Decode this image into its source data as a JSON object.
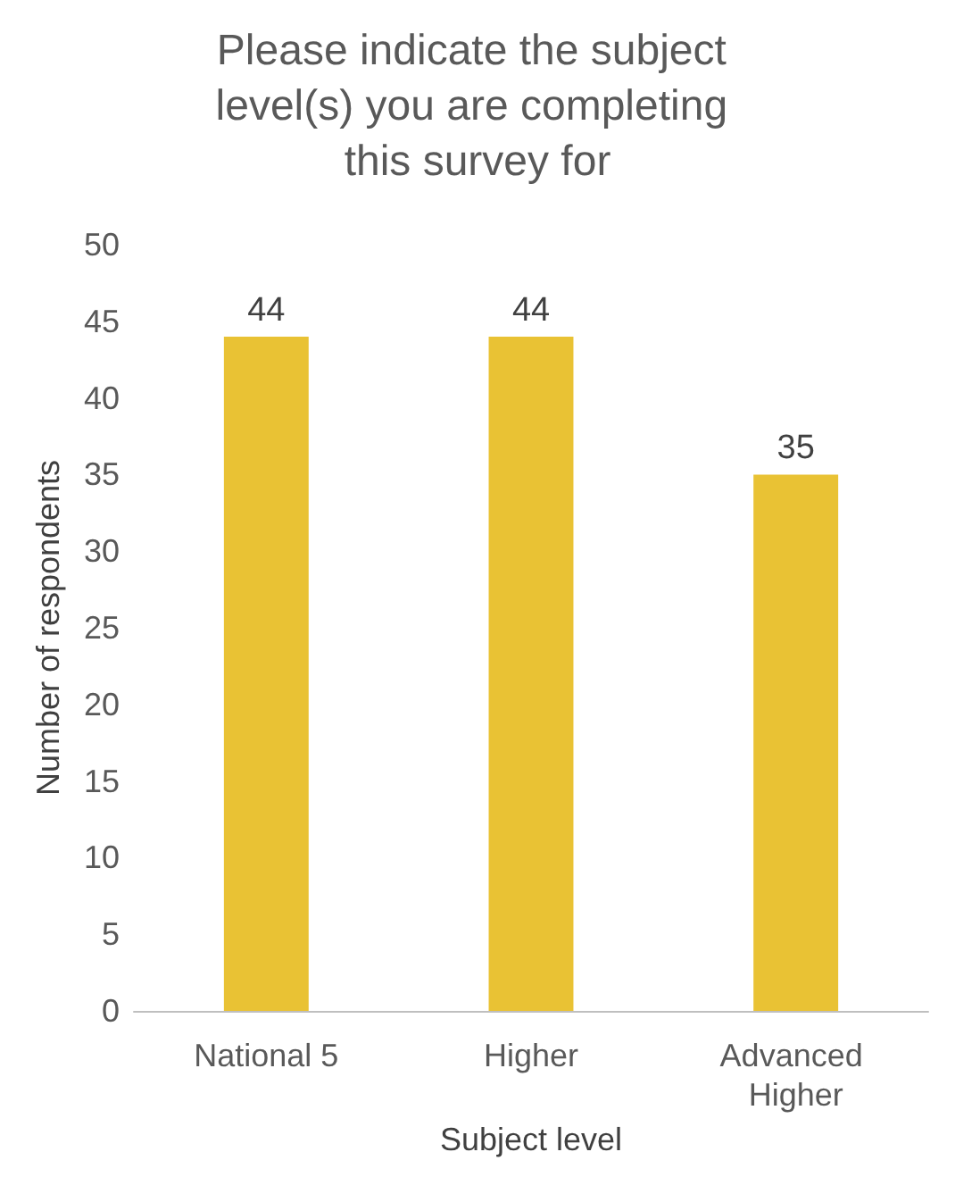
{
  "chart_data": {
    "type": "bar",
    "title": "Please indicate the subject level(s) you are completing this survey for",
    "xlabel": "Subject level",
    "ylabel": "Number of respondents",
    "categories": [
      "National 5",
      "Higher",
      "Advanced Higher"
    ],
    "values": [
      44,
      44,
      35
    ],
    "color": "#e9c234",
    "ylim": [
      0,
      50
    ],
    "yticks": [
      0,
      5,
      10,
      15,
      20,
      25,
      30,
      35,
      40,
      45,
      50
    ],
    "grid": false,
    "data_labels": true
  }
}
